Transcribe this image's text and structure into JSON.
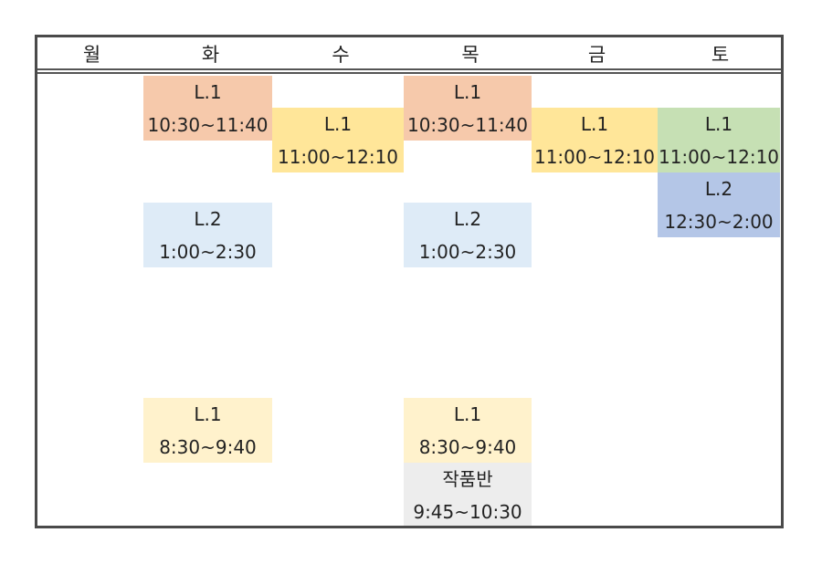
{
  "days": [
    "월",
    "화",
    "수",
    "목",
    "금",
    "토"
  ],
  "blocks": [
    {
      "day": "화",
      "title": "L.1",
      "time": "10:30~11:40",
      "color": "#f6c9ab"
    },
    {
      "day": "화",
      "title": "L.2",
      "time": "1:00~2:30",
      "color": "#deebf7"
    },
    {
      "day": "화",
      "title": "L.1",
      "time": "8:30~9:40",
      "color": "#fff2cc"
    },
    {
      "day": "수",
      "title": "L.1",
      "time": "11:00~12:10",
      "color": "#ffe699"
    },
    {
      "day": "목",
      "title": "L.1",
      "time": "10:30~11:40",
      "color": "#f6c9ab"
    },
    {
      "day": "목",
      "title": "L.2",
      "time": "1:00~2:30",
      "color": "#deebf7"
    },
    {
      "day": "목",
      "title": "L.1",
      "time": "8:30~9:40",
      "color": "#fff2cc"
    },
    {
      "day": "목",
      "title": "작품반",
      "time": "9:45~10:30",
      "color": "#ededed"
    },
    {
      "day": "금",
      "title": "L.1",
      "time": "11:00~12:10",
      "color": "#ffe699"
    },
    {
      "day": "토",
      "title": "L.1",
      "time": "11:00~12:10",
      "color": "#c6e0b4"
    },
    {
      "day": "토",
      "title": "L.2",
      "time": "12:30~2:00",
      "color": "#b4c6e7"
    }
  ]
}
